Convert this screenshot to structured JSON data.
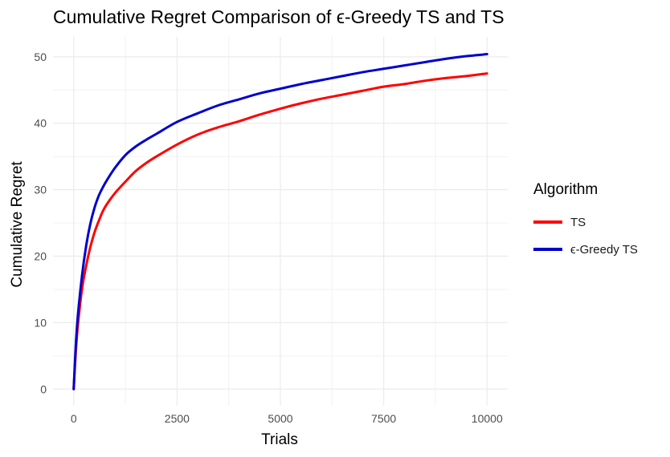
{
  "chart_data": {
    "type": "line",
    "title": "Cumulative Regret Comparison of ϵ-Greedy TS and TS",
    "xlabel": "Trials",
    "ylabel": "Cumulative Regret",
    "xlim": [
      -500,
      10500
    ],
    "ylim": [
      -2.5,
      53
    ],
    "xticks": [
      0,
      2500,
      5000,
      7500,
      10000
    ],
    "xtick_labels": [
      "0",
      "2500",
      "5000",
      "7500",
      "10000"
    ],
    "yticks": [
      0,
      10,
      20,
      30,
      40,
      50
    ],
    "ytick_labels": [
      "0",
      "10",
      "20",
      "30",
      "40",
      "50"
    ],
    "grid": true,
    "legend": {
      "title": "Algorithm",
      "position": "right"
    },
    "series": [
      {
        "name": "TS",
        "color": "#ff0000",
        "x": [
          0,
          50,
          100,
          200,
          300,
          400,
          500,
          600,
          700,
          800,
          1000,
          1250,
          1500,
          1750,
          2000,
          2500,
          3000,
          3500,
          4000,
          4500,
          5000,
          5500,
          6000,
          6500,
          7000,
          7500,
          8000,
          8500,
          9000,
          9500,
          10000
        ],
        "values": [
          0,
          5.5,
          9.5,
          15,
          18.5,
          21.3,
          23.5,
          25.2,
          26.7,
          27.8,
          29.5,
          31.2,
          32.8,
          34.0,
          35.0,
          36.8,
          38.3,
          39.4,
          40.3,
          41.3,
          42.2,
          43.0,
          43.7,
          44.3,
          44.9,
          45.5,
          45.9,
          46.4,
          46.8,
          47.1,
          47.5
        ]
      },
      {
        "name": "ϵ-Greedy TS",
        "color": "#0000cd",
        "x": [
          0,
          50,
          100,
          200,
          300,
          400,
          500,
          600,
          700,
          800,
          1000,
          1250,
          1500,
          1750,
          2000,
          2500,
          3000,
          3500,
          4000,
          4500,
          5000,
          5500,
          6000,
          6500,
          7000,
          7500,
          8000,
          8500,
          9000,
          9500,
          10000
        ],
        "values": [
          0,
          6.5,
          11,
          17,
          21.5,
          24.8,
          27.2,
          29,
          30.3,
          31.4,
          33.3,
          35.2,
          36.5,
          37.5,
          38.4,
          40.2,
          41.5,
          42.7,
          43.6,
          44.5,
          45.2,
          45.9,
          46.5,
          47.1,
          47.7,
          48.2,
          48.7,
          49.2,
          49.7,
          50.1,
          50.4
        ]
      }
    ]
  }
}
